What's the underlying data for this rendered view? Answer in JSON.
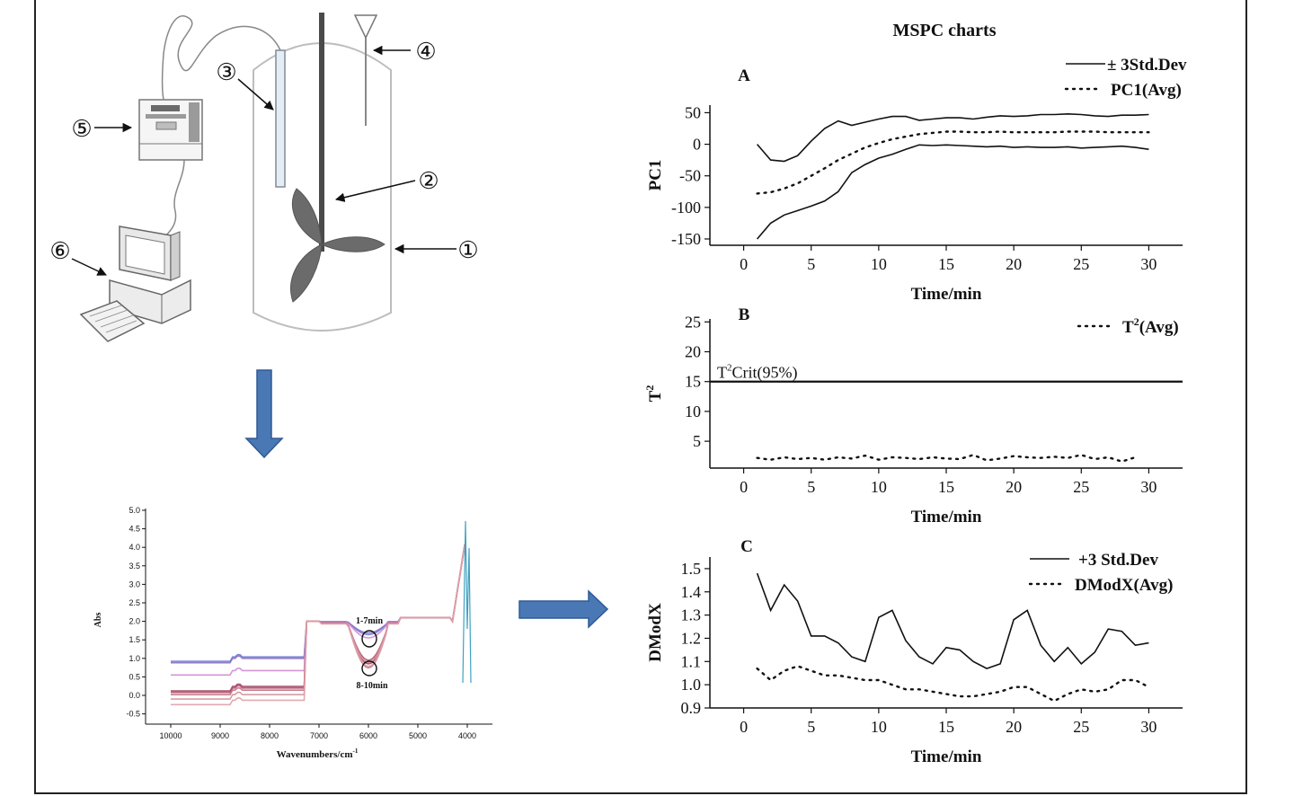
{
  "apparatus": {
    "callouts": [
      "①",
      "②",
      "③",
      "④",
      "⑤",
      "⑥"
    ]
  },
  "spectrum": {
    "ylabel": "Abs",
    "xlabel": "Wavenumbers/cm",
    "xlabel_sup": "-1",
    "yticks": [
      "5.0",
      "4.5",
      "4.0",
      "3.5",
      "3.0",
      "2.5",
      "2.0",
      "1.5",
      "1.0",
      "0.5",
      "0.0",
      "-0.5"
    ],
    "xticks": [
      "10000",
      "9000",
      "8000",
      "7000",
      "6000",
      "5000",
      "4000"
    ],
    "annotation_top": "1-7min",
    "annotation_bottom": "8-10min"
  },
  "colors": {
    "arrow_fill": "#4a78b4",
    "arrow_stroke": "#2f5a94",
    "line": "#111111"
  },
  "mspc": {
    "title": "MSPC charts",
    "chart_data": [
      {
        "type": "line",
        "panel": "A",
        "ylabel": "PC1",
        "xlabel": "Time/min",
        "xlim": [
          -2.5,
          32.5
        ],
        "ylim": [
          -160,
          62
        ],
        "xticks": [
          0,
          5,
          10,
          15,
          20,
          25,
          30
        ],
        "yticks": [
          50,
          0,
          -50,
          -100,
          -150
        ],
        "legend": [
          "± 3Std.Dev",
          "PC1(Avg)"
        ],
        "x": [
          1,
          2,
          3,
          4,
          5,
          6,
          7,
          8,
          9,
          10,
          11,
          12,
          13,
          14,
          15,
          16,
          17,
          18,
          19,
          20,
          21,
          22,
          23,
          24,
          25,
          26,
          27,
          28,
          29,
          30
        ],
        "series": [
          {
            "name": "± 3Std.Dev",
            "style": "solid",
            "values": [
              0,
              -25,
              -27,
              -18,
              5,
              25,
              37,
              30,
              35,
              40,
              44,
              44,
              38,
              40,
              42,
              42,
              40,
              43,
              45,
              44,
              45,
              47,
              47,
              48,
              47,
              45,
              44,
              46,
              46,
              47
            ]
          },
          {
            "name": "PC1(Avg)",
            "style": "dotted",
            "values": [
              -78,
              -76,
              -70,
              -62,
              -50,
              -38,
              -25,
              -15,
              -5,
              2,
              8,
              12,
              16,
              18,
              20,
              20,
              19,
              19,
              20,
              19,
              19,
              19,
              19,
              20,
              20,
              20,
              19,
              19,
              19,
              19
            ]
          },
          {
            "name": "± 3Std.Dev",
            "style": "solid",
            "values": [
              -150,
              -125,
              -112,
              -105,
              -98,
              -90,
              -75,
              -45,
              -32,
              -22,
              -16,
              -8,
              -1,
              -2,
              -1,
              -2,
              -3,
              -4,
              -3,
              -5,
              -4,
              -5,
              -5,
              -4,
              -6,
              -5,
              -4,
              -3,
              -5,
              -8
            ]
          }
        ]
      },
      {
        "type": "line",
        "panel": "B",
        "ylabel": "T",
        "ylabel_sup": "2",
        "xlabel": "Time/min",
        "xlim": [
          -2.5,
          32.5
        ],
        "ylim": [
          0.5,
          25.5
        ],
        "xticks": [
          0,
          5,
          10,
          15,
          20,
          25,
          30
        ],
        "yticks": [
          25,
          20,
          15,
          10,
          5
        ],
        "legend": [
          "T",
          "(Avg)"
        ],
        "legend_sup": "2",
        "crit_label": "T",
        "crit_label_sup": "2",
        "crit_label_rest": "Crit(95%)",
        "crit_value": 15,
        "x": [
          1,
          2,
          3,
          4,
          5,
          6,
          7,
          8,
          9,
          10,
          11,
          12,
          13,
          14,
          15,
          16,
          17,
          18,
          19,
          20,
          21,
          22,
          23,
          24,
          25,
          26,
          27,
          28,
          29
        ],
        "series": [
          {
            "name": "T2(Avg)",
            "style": "dotted",
            "values": [
              2.2,
              1.9,
              2.3,
              2.0,
              2.2,
              1.9,
              2.3,
              2.1,
              2.6,
              1.9,
              2.3,
              2.2,
              2.0,
              2.3,
              2.1,
              2.0,
              2.7,
              1.8,
              2.1,
              2.5,
              2.3,
              2.2,
              2.4,
              2.2,
              2.7,
              2.0,
              2.3,
              1.6,
              2.3
            ]
          }
        ]
      },
      {
        "type": "line",
        "panel": "C",
        "ylabel": "DModX",
        "xlabel": "Time/min",
        "xlim": [
          -2.5,
          32.5
        ],
        "ylim": [
          0.9,
          1.55
        ],
        "xticks": [
          0,
          5,
          10,
          15,
          20,
          25,
          30
        ],
        "yticks": [
          "1.5",
          "1.4",
          "1.3",
          "1.2",
          "1.1",
          "1.0",
          "0.9"
        ],
        "legend": [
          "+3 Std.Dev",
          "DModX(Avg)"
        ],
        "x": [
          1,
          2,
          3,
          4,
          5,
          6,
          7,
          8,
          9,
          10,
          11,
          12,
          13,
          14,
          15,
          16,
          17,
          18,
          19,
          20,
          21,
          22,
          23,
          24,
          25,
          26,
          27,
          28,
          29,
          30
        ],
        "series": [
          {
            "name": "+3 Std.Dev",
            "style": "solid",
            "values": [
              1.48,
              1.32,
              1.43,
              1.36,
              1.21,
              1.21,
              1.18,
              1.12,
              1.1,
              1.29,
              1.32,
              1.19,
              1.12,
              1.09,
              1.16,
              1.15,
              1.1,
              1.07,
              1.09,
              1.28,
              1.32,
              1.17,
              1.1,
              1.16,
              1.09,
              1.14,
              1.24,
              1.23,
              1.17,
              1.18
            ]
          },
          {
            "name": "DModX(Avg)",
            "style": "dotted",
            "values": [
              1.07,
              1.02,
              1.06,
              1.08,
              1.06,
              1.04,
              1.04,
              1.03,
              1.02,
              1.02,
              1.0,
              0.98,
              0.98,
              0.97,
              0.96,
              0.95,
              0.95,
              0.96,
              0.97,
              0.99,
              0.99,
              0.96,
              0.93,
              0.96,
              0.98,
              0.97,
              0.98,
              1.02,
              1.02,
              0.99
            ]
          }
        ]
      }
    ]
  }
}
